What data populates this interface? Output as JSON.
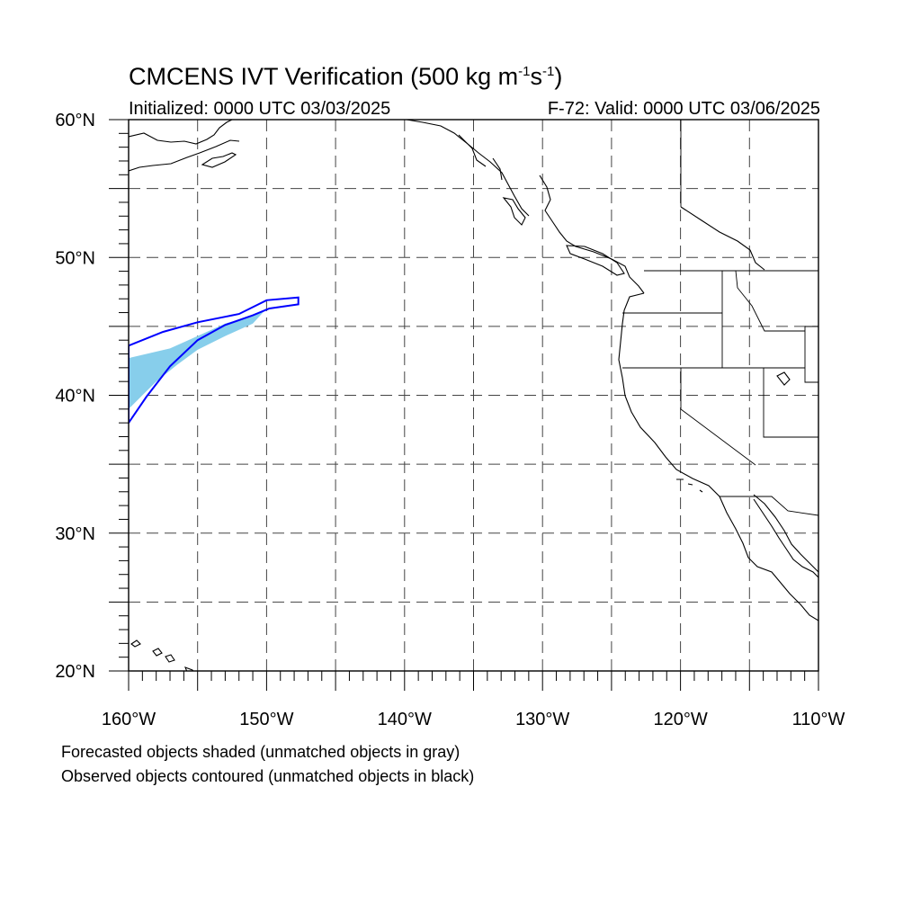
{
  "title": {
    "main": "CMCENS IVT Verification (500 kg m",
    "sup1": "-1",
    "mid": "s",
    "sup2": "-1",
    "close": ")"
  },
  "subtitle_left": "Initialized: 0000 UTC 03/03/2025",
  "subtitle_right": "F-72: Valid: 0000 UTC 03/06/2025",
  "footnote_1": "Forecasted objects shaded (unmatched objects in gray)",
  "footnote_2": "Observed objects contoured (unmatched objects in black)",
  "map": {
    "lon_range": [
      -160,
      -110
    ],
    "lat_range": [
      20,
      60
    ],
    "x_ticks": [
      {
        "lon": -160,
        "label": "160°W"
      },
      {
        "lon": -150,
        "label": "150°W"
      },
      {
        "lon": -140,
        "label": "140°W"
      },
      {
        "lon": -130,
        "label": "130°W"
      },
      {
        "lon": -120,
        "label": "120°W"
      },
      {
        "lon": -110,
        "label": "110°W"
      }
    ],
    "y_ticks": [
      {
        "lat": 60,
        "label": "60°N"
      },
      {
        "lat": 50,
        "label": "50°N"
      },
      {
        "lat": 40,
        "label": "40°N"
      },
      {
        "lat": 30,
        "label": "30°N"
      },
      {
        "lat": 20,
        "label": "20°N"
      }
    ],
    "gridlines": "dashed every 5°",
    "colors": {
      "forecast_fill": "#87ceeb",
      "observed_contour": "#0000ff",
      "coast": "#000000"
    },
    "forecast_object": [
      [
        -160,
        39
      ],
      [
        -160,
        42.7
      ],
      [
        -157,
        43.4
      ],
      [
        -155,
        44.3
      ],
      [
        -153,
        45.2
      ],
      [
        -151,
        45.8
      ],
      [
        -150,
        46.3
      ],
      [
        -151,
        45.2
      ],
      [
        -153,
        44.3
      ],
      [
        -155,
        43.3
      ],
      [
        -156.5,
        42.2
      ],
      [
        -158,
        41
      ],
      [
        -159,
        40
      ]
    ],
    "observed_object": [
      [
        -160,
        38
      ],
      [
        -160,
        43.6
      ],
      [
        -157.5,
        44.6
      ],
      [
        -155,
        45.3
      ],
      [
        -152,
        45.9
      ],
      [
        -150,
        46.9
      ],
      [
        -147.7,
        47.1
      ],
      [
        -147.7,
        46.6
      ],
      [
        -149.8,
        46.3
      ],
      [
        -151,
        45.8
      ],
      [
        -153,
        45.1
      ],
      [
        -155,
        44
      ],
      [
        -157,
        42.1
      ],
      [
        -158.7,
        39.9
      ]
    ]
  }
}
